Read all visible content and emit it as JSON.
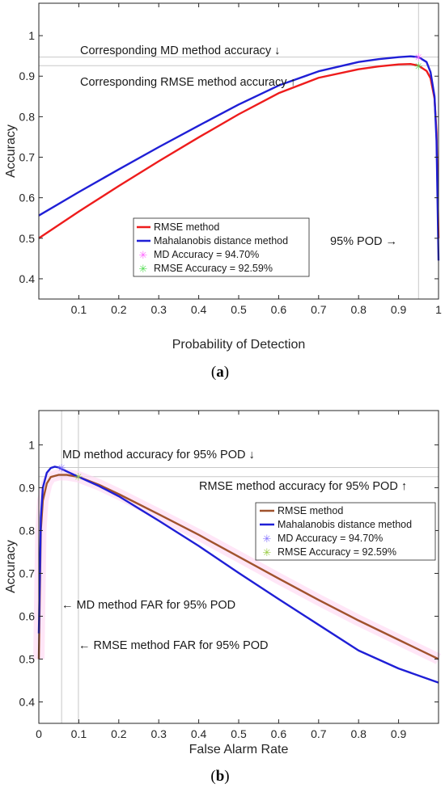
{
  "chart_data": [
    {
      "type": "line",
      "panel_label": "a",
      "xlabel": "Probability of Detection",
      "ylabel": "Accuracy",
      "xlim": [
        0,
        1
      ],
      "ylim": [
        0.35,
        1.08
      ],
      "xticks": [
        "0.1",
        "0.2",
        "0.3",
        "0.4",
        "0.5",
        "0.6",
        "0.7",
        "0.8",
        "0.9",
        "1"
      ],
      "yticks": [
        "0.4",
        "0.5",
        "0.6",
        "0.7",
        "0.8",
        "0.9",
        "1"
      ],
      "series": [
        {
          "name": "RMSE method",
          "color": "#ee1c1c",
          "x": [
            0,
            0.1,
            0.2,
            0.3,
            0.4,
            0.5,
            0.6,
            0.7,
            0.8,
            0.85,
            0.9,
            0.93,
            0.95,
            0.97,
            0.98,
            0.99,
            0.995,
            1.0
          ],
          "y": [
            0.5,
            0.566,
            0.629,
            0.69,
            0.749,
            0.806,
            0.858,
            0.896,
            0.917,
            0.924,
            0.929,
            0.93,
            0.926,
            0.913,
            0.895,
            0.845,
            0.76,
            0.5
          ]
        },
        {
          "name": "Mahalanobis distance method",
          "color": "#1f1fd6",
          "x": [
            0,
            0.1,
            0.2,
            0.3,
            0.4,
            0.5,
            0.6,
            0.7,
            0.8,
            0.85,
            0.9,
            0.93,
            0.95,
            0.97,
            0.98,
            0.99,
            0.995,
            1.0
          ],
          "y": [
            0.556,
            0.614,
            0.67,
            0.725,
            0.778,
            0.83,
            0.877,
            0.912,
            0.935,
            0.942,
            0.947,
            0.949,
            0.947,
            0.935,
            0.91,
            0.85,
            0.74,
            0.445
          ]
        }
      ],
      "markers": [
        {
          "name": "MD Accuracy = 94.70%",
          "color": "#ff66ff",
          "x": 0.95,
          "y": 0.947
        },
        {
          "name": "RMSE Accuracy = 92.59%",
          "color": "#55dd55",
          "x": 0.95,
          "y": 0.9259
        }
      ],
      "hlines": [
        0.947,
        0.9259
      ],
      "vlines": [
        0.95
      ],
      "legend_placement": "center-left",
      "annotations": {
        "md": "Corresponding MD method accuracy ↓",
        "rmse": "Corresponding RMSE method accuracy ↑",
        "pod": "95% POD →"
      }
    },
    {
      "type": "line",
      "panel_label": "b",
      "xlabel": "False Alarm Rate",
      "ylabel": "Accuracy",
      "xlim": [
        0,
        1
      ],
      "ylim": [
        0.35,
        1.08
      ],
      "xticks": [
        "0",
        "0.1",
        "0.2",
        "0.3",
        "0.4",
        "0.5",
        "0.6",
        "0.7",
        "0.8",
        "0.9"
      ],
      "yticks": [
        "0.4",
        "0.5",
        "0.6",
        "0.7",
        "0.8",
        "0.9",
        "1"
      ],
      "series": [
        {
          "name": "RMSE method",
          "color": "#a0522d",
          "x": [
            0,
            0.005,
            0.01,
            0.02,
            0.03,
            0.05,
            0.07,
            0.1,
            0.15,
            0.2,
            0.3,
            0.4,
            0.5,
            0.6,
            0.7,
            0.8,
            0.9,
            1.0
          ],
          "y": [
            0.5,
            0.8,
            0.87,
            0.91,
            0.925,
            0.93,
            0.93,
            0.925,
            0.907,
            0.885,
            0.838,
            0.79,
            0.739,
            0.688,
            0.638,
            0.59,
            0.545,
            0.5
          ]
        },
        {
          "name": "Mahalanobis distance method",
          "color": "#1f1fd6",
          "x": [
            0,
            0.005,
            0.01,
            0.02,
            0.03,
            0.04,
            0.05,
            0.07,
            0.1,
            0.15,
            0.2,
            0.3,
            0.4,
            0.5,
            0.6,
            0.7,
            0.8,
            0.9,
            1.0
          ],
          "y": [
            0.56,
            0.83,
            0.9,
            0.935,
            0.946,
            0.949,
            0.947,
            0.938,
            0.925,
            0.904,
            0.88,
            0.823,
            0.764,
            0.701,
            0.64,
            0.58,
            0.52,
            0.478,
            0.445
          ]
        }
      ],
      "markers": [
        {
          "name": "MD Accuracy = 94.70%",
          "color": "#8877ff",
          "x": 0.057,
          "y": 0.947
        },
        {
          "name": "RMSE Accuracy = 92.59%",
          "color": "#99cc44",
          "x": 0.099,
          "y": 0.9259
        }
      ],
      "hlines": [
        0.947,
        0.9259
      ],
      "vlines": [
        0.057,
        0.099
      ],
      "legend_placement": "center-right",
      "annotations": {
        "md": "MD method accuracy for 95% POD ↓",
        "rmse": "RMSE method accuracy for 95% POD ↑",
        "md_far": "← MD method FAR for 95% POD",
        "rmse_far": "← RMSE method FAR for 95% POD"
      }
    }
  ]
}
